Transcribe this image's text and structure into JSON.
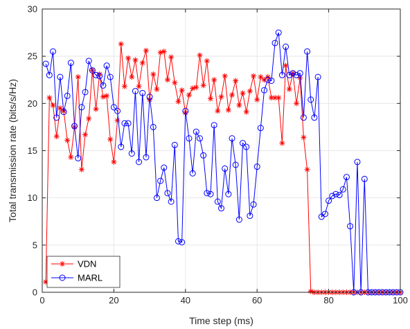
{
  "chart_data": {
    "type": "line",
    "xlabel": "Time step (ms)",
    "ylabel": "Total transmission rate (bits/s/Hz)",
    "xlim": [
      0,
      100
    ],
    "ylim": [
      0,
      30
    ],
    "xticks": [
      0,
      20,
      40,
      60,
      80,
      100
    ],
    "yticks": [
      0,
      5,
      10,
      15,
      20,
      25,
      30
    ],
    "grid": true,
    "legend_position": "bottom-left",
    "series": [
      {
        "name": "VDN",
        "color": "#ff0000",
        "marker": "asterisk",
        "x": [
          1,
          2,
          3,
          4,
          5,
          6,
          7,
          8,
          9,
          10,
          11,
          12,
          13,
          14,
          15,
          16,
          17,
          18,
          19,
          20,
          21,
          22,
          23,
          24,
          25,
          26,
          27,
          28,
          29,
          30,
          31,
          32,
          33,
          34,
          35,
          36,
          37,
          38,
          39,
          40,
          41,
          42,
          43,
          44,
          45,
          46,
          47,
          48,
          49,
          50,
          51,
          52,
          53,
          54,
          55,
          56,
          57,
          58,
          59,
          60,
          61,
          62,
          63,
          64,
          65,
          66,
          67,
          68,
          69,
          70,
          71,
          72,
          73,
          74,
          75,
          76,
          77,
          78,
          79,
          80,
          81,
          82,
          83,
          84,
          85,
          86,
          87,
          88,
          89,
          90,
          91,
          92,
          93,
          94,
          95,
          96,
          97,
          98,
          99,
          100
        ],
        "y": [
          1.1,
          20.6,
          19.8,
          16.5,
          19.5,
          19.2,
          16.1,
          14.3,
          17.5,
          22.8,
          13.0,
          16.7,
          18.4,
          23.5,
          19.4,
          23.1,
          20.7,
          20.8,
          16.2,
          13.8,
          18.2,
          26.3,
          21.8,
          24.8,
          22.8,
          24.6,
          21.8,
          24.3,
          25.6,
          20.4,
          23.1,
          21.5,
          25.4,
          25.5,
          22.5,
          24.9,
          22.2,
          20.2,
          21.4,
          19.0,
          20.9,
          21.6,
          21.7,
          25.1,
          21.9,
          24.5,
          20.5,
          22.5,
          19.2,
          20.7,
          22.9,
          19.3,
          20.9,
          22.4,
          19.8,
          21.1,
          19.1,
          21.3,
          22.9,
          20.4,
          22.8,
          22.5,
          22.8,
          20.6,
          20.6,
          20.6,
          15.8,
          24.0,
          21.5,
          23.2,
          20.0,
          22.7,
          16.4,
          13.0,
          0.1,
          0,
          0,
          0,
          0,
          0,
          0,
          0,
          0,
          0,
          0,
          0,
          0,
          0,
          0,
          0,
          0,
          0,
          0,
          0,
          0,
          0,
          0,
          0,
          0,
          0
        ]
      },
      {
        "name": "MARL",
        "color": "#0000ff",
        "marker": "circle",
        "x": [
          1,
          2,
          3,
          4,
          5,
          6,
          7,
          8,
          9,
          10,
          11,
          12,
          13,
          14,
          15,
          16,
          17,
          18,
          19,
          20,
          21,
          22,
          23,
          24,
          25,
          26,
          27,
          28,
          29,
          30,
          31,
          32,
          33,
          34,
          35,
          36,
          37,
          38,
          39,
          40,
          41,
          42,
          43,
          44,
          45,
          46,
          47,
          48,
          49,
          50,
          51,
          52,
          53,
          54,
          55,
          56,
          57,
          58,
          59,
          60,
          61,
          62,
          63,
          64,
          65,
          66,
          67,
          68,
          69,
          70,
          71,
          72,
          73,
          74,
          75,
          76,
          77,
          78,
          79,
          80,
          81,
          82,
          83,
          84,
          85,
          86,
          87,
          88,
          89,
          90,
          91,
          92,
          93,
          94,
          95,
          96,
          97,
          98,
          99,
          100
        ],
        "y": [
          24.2,
          23.0,
          25.5,
          18.5,
          22.8,
          19.1,
          20.8,
          24.3,
          17.6,
          14.2,
          19.6,
          21.2,
          24.5,
          23.5,
          23.0,
          22.9,
          21.9,
          24.0,
          22.8,
          19.6,
          19.2,
          15.4,
          17.9,
          17.9,
          14.7,
          21.3,
          13.8,
          21.1,
          14.3,
          20.7,
          17.5,
          10.0,
          11.8,
          13.2,
          10.5,
          9.6,
          15.6,
          5.4,
          5.3,
          19.2,
          16.3,
          12.6,
          17.0,
          16.3,
          14.5,
          10.5,
          10.4,
          17.7,
          9.6,
          8.9,
          13.1,
          10.4,
          16.3,
          13.5,
          7.7,
          15.8,
          15.4,
          8.1,
          9.3,
          13.3,
          17.4,
          21.4,
          22.5,
          22.4,
          26.4,
          27.5,
          23.0,
          26.0,
          23.0,
          23.2,
          23.0,
          23.2,
          18.5,
          25.5,
          20.4,
          18.5,
          22.8,
          8.0,
          8.3,
          9.7,
          10.2,
          10.4,
          10.3,
          10.9,
          12.2,
          7.0,
          0,
          13.8,
          0,
          12.0,
          0,
          0,
          0,
          0,
          0,
          0,
          0,
          0,
          0,
          0
        ]
      }
    ]
  }
}
